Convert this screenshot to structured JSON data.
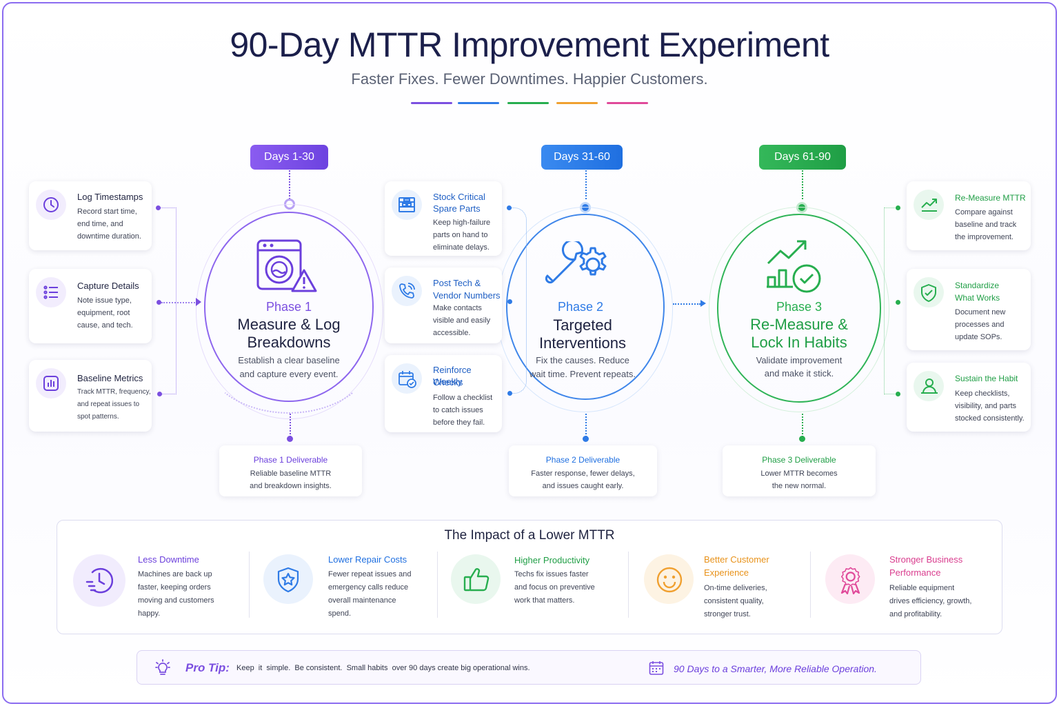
{
  "header": {
    "title": "90-Day MTTR Improvement Experiment",
    "subtitle": "Faster Fixes. Fewer Downtimes. Happier Customers."
  },
  "colors": {
    "purple": "#7b4fe0",
    "blue": "#2f7be6",
    "green": "#27ae4f",
    "orange": "#f0a030",
    "pink": "#e04a9a"
  },
  "phases": [
    {
      "days": "Days 1-30",
      "label": "Phase 1",
      "name_l1": "Measure & Log",
      "name_l2": "Breakdowns",
      "desc_l1": "Establish a clear baseline",
      "desc_l2": "and capture every event.",
      "icon": "washing-machine-warning-icon",
      "deliverable_title": "Phase  1  Deliverable",
      "deliverable_l1": "Reliable baseline MTTR",
      "deliverable_l2": "and breakdown insights."
    },
    {
      "days": "Days 31-60",
      "label": "Phase 2",
      "name_l1": "Targeted",
      "name_l2": "Interventions",
      "desc_l1": "Fix the causes. Reduce",
      "desc_l2": "wait time. Prevent repeats.",
      "icon": "wrench-gear-icon",
      "deliverable_title": "Phase  2  Deliverable",
      "deliverable_l1": "Faster response, fewer delays,",
      "deliverable_l2": "and issues caught early."
    },
    {
      "days": "Days 61-90",
      "label": "Phase 3",
      "name_l1": "Re-Measure &",
      "name_l2": "Lock In Habits",
      "desc_l1": "Validate improvement",
      "desc_l2": "and make it stick.",
      "icon": "growth-check-icon",
      "deliverable_title": "Phase  3  Deliverable",
      "deliverable_l1": "Lower MTTR becomes",
      "deliverable_l2": "the new normal."
    }
  ],
  "left_cards": [
    {
      "title": "Log Timestamps",
      "desc": [
        "Record start time,",
        "end time, and",
        "downtime duration."
      ],
      "icon": "clock-icon"
    },
    {
      "title": "Capture Details",
      "desc": [
        "Note issue type,",
        "equipment, root",
        "cause, and tech."
      ],
      "icon": "list-icon"
    },
    {
      "title": "Baseline Metrics",
      "desc": [
        "Track MTTR, frequency,",
        "and repeat issues to",
        "spot patterns."
      ],
      "icon": "bar-chart-icon"
    }
  ],
  "mid_cards": [
    {
      "title": [
        "Stock Critical",
        "Spare Parts"
      ],
      "desc": [
        "Keep high-failure",
        "parts on hand to",
        "eliminate delays."
      ],
      "icon": "shelf-icon"
    },
    {
      "title": [
        "Post Tech &",
        "Vendor Numbers"
      ],
      "desc": [
        "Make contacts",
        "visible and easily",
        "accessible."
      ],
      "icon": "phone-icon"
    },
    {
      "title": [
        "Reinforce Weekly",
        "Checks"
      ],
      "desc": [
        "Follow a checklist",
        "to catch issues",
        "before they fail."
      ],
      "icon": "calendar-check-icon"
    }
  ],
  "right_cards": [
    {
      "title": [
        "Re-Measure MTTR"
      ],
      "desc": [
        "Compare against",
        "baseline and track",
        "the improvement."
      ],
      "icon": "trend-up-icon"
    },
    {
      "title": [
        "Standardize",
        "What Works"
      ],
      "desc": [
        "Document new",
        "processes and",
        "update SOPs."
      ],
      "icon": "shield-check-icon"
    },
    {
      "title": [
        "Sustain the Habit"
      ],
      "desc": [
        "Keep checklists,",
        "visibility, and parts",
        "stocked consistently."
      ],
      "icon": "people-icon"
    }
  ],
  "impact": {
    "title": "The Impact of a Lower MTTR",
    "items": [
      {
        "title": [
          "Less  Downtime"
        ],
        "desc": [
          "Machines are back up",
          "faster, keeping orders",
          "moving and customers",
          "happy."
        ],
        "icon": "fast-clock-icon"
      },
      {
        "title": [
          "Lower Repair Costs"
        ],
        "desc": [
          "Fewer repeat issues and",
          "emergency calls reduce",
          "overall maintenance",
          "spend."
        ],
        "icon": "shield-star-icon"
      },
      {
        "title": [
          "Higher Productivity"
        ],
        "desc": [
          "Techs fix issues faster",
          "and focus on preventive",
          "work that matters."
        ],
        "icon": "thumbs-up-icon"
      },
      {
        "title": [
          "Better Customer",
          "Experience"
        ],
        "desc": [
          "On-time deliveries,",
          "consistent quality,",
          "stronger trust."
        ],
        "icon": "smiley-icon"
      },
      {
        "title": [
          "Stronger Business",
          "Performance"
        ],
        "desc": [
          "Reliable equipment",
          "drives efficiency, growth,",
          "and profitability."
        ],
        "icon": "award-ribbon-icon"
      }
    ]
  },
  "tip": {
    "label": "Pro Tip:",
    "text": "Keep  it  simple.  Be consistent.  Small habits  over 90 days create big operational wins.",
    "right_text": "90 Days to a Smarter, More Reliable Operation.",
    "left_icon": "lightbulb-icon",
    "right_icon": "calendar-icon"
  }
}
